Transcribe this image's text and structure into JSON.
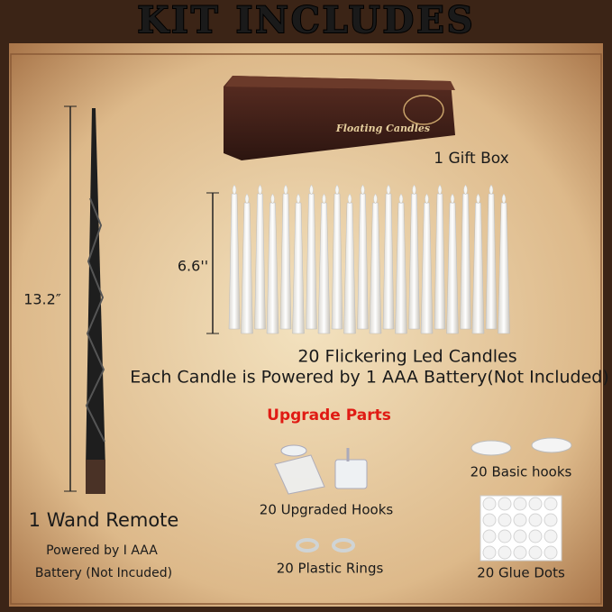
{
  "title": "KIT INCLUDES",
  "gift_box": {
    "print": "Floating Candles",
    "label": "1 Gift Box"
  },
  "candles": {
    "height": "6.6''",
    "label": "20 Flickering Led Candles",
    "note": "Each Candle is Powered by 1 AAA Battery(Not Included)"
  },
  "wand": {
    "length": "13.2″",
    "label": "1 Wand Remote",
    "battery_line1": "Powered by I AAA",
    "battery_line2": "Battery (Not Incuded)"
  },
  "upgrade": {
    "heading": "Upgrade Parts",
    "basic_hooks": "20 Basic hooks",
    "upgraded_hooks": "20 Upgraded Hooks",
    "plastic_rings": "20 Plastic Rings",
    "glue_dots": "20 Glue Dots"
  }
}
